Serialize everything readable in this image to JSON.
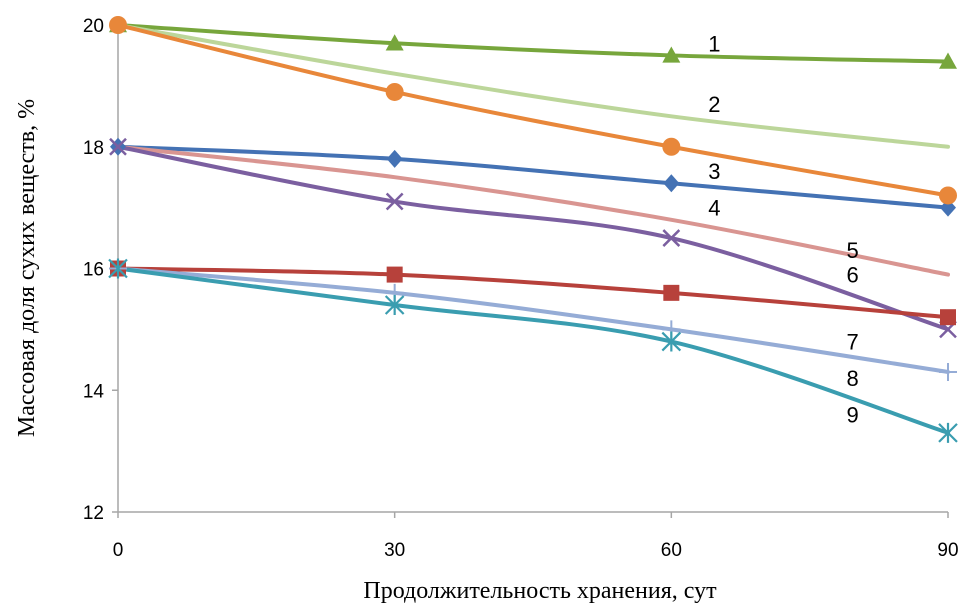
{
  "chart_data": {
    "type": "line",
    "title": "",
    "xlabel": "Продолжительность хранения,  сут",
    "ylabel": "Массовая доля сухих веществ, %",
    "xlim": [
      0,
      90
    ],
    "ylim": [
      12,
      20
    ],
    "xticks": [
      0,
      30,
      60,
      90
    ],
    "yticks": [
      12,
      14,
      16,
      18,
      20
    ],
    "grid": false,
    "legend": "inline-labels",
    "x": [
      0,
      30,
      60,
      90
    ],
    "series": [
      {
        "name": "1",
        "values": [
          20.0,
          19.7,
          19.5,
          19.4
        ],
        "color": "#77a63c",
        "marker": "triangle"
      },
      {
        "name": "2",
        "values": [
          20.0,
          19.2,
          18.5,
          18.0
        ],
        "color": "#bcd69a",
        "marker": "none"
      },
      {
        "name": "3",
        "values": [
          18.0,
          17.8,
          17.4,
          17.0
        ],
        "color": "#4472b4",
        "marker": "diamond"
      },
      {
        "name": "4",
        "values": [
          20.0,
          18.9,
          18.0,
          17.2
        ],
        "color": "#e8873a",
        "marker": "circle"
      },
      {
        "name": "5",
        "values": [
          18.0,
          17.5,
          16.8,
          15.9
        ],
        "color": "#d99591",
        "marker": "none"
      },
      {
        "name": "6",
        "values": [
          18.0,
          17.1,
          16.5,
          15.0
        ],
        "color": "#7b5fa0",
        "marker": "x"
      },
      {
        "name": "7",
        "values": [
          16.0,
          15.9,
          15.6,
          15.2
        ],
        "color": "#b7413b",
        "marker": "square"
      },
      {
        "name": "8",
        "values": [
          16.0,
          15.6,
          15.0,
          14.3
        ],
        "color": "#95acd6",
        "marker": "plus"
      },
      {
        "name": "9",
        "values": [
          16.0,
          15.4,
          14.8,
          13.3
        ],
        "color": "#3a9db0",
        "marker": "star"
      }
    ],
    "series_label_positions": [
      {
        "name": "1",
        "x": 64,
        "y": 19.7
      },
      {
        "name": "2",
        "x": 64,
        "y": 18.7
      },
      {
        "name": "3",
        "x": 64,
        "y": 17.6
      },
      {
        "name": "4",
        "x": 64,
        "y": 17.0
      },
      {
        "name": "5",
        "x": 79,
        "y": 16.3
      },
      {
        "name": "6",
        "x": 79,
        "y": 15.9
      },
      {
        "name": "7",
        "x": 79,
        "y": 14.8
      },
      {
        "name": "8",
        "x": 79,
        "y": 14.2
      },
      {
        "name": "9",
        "x": 79,
        "y": 13.6
      }
    ]
  }
}
